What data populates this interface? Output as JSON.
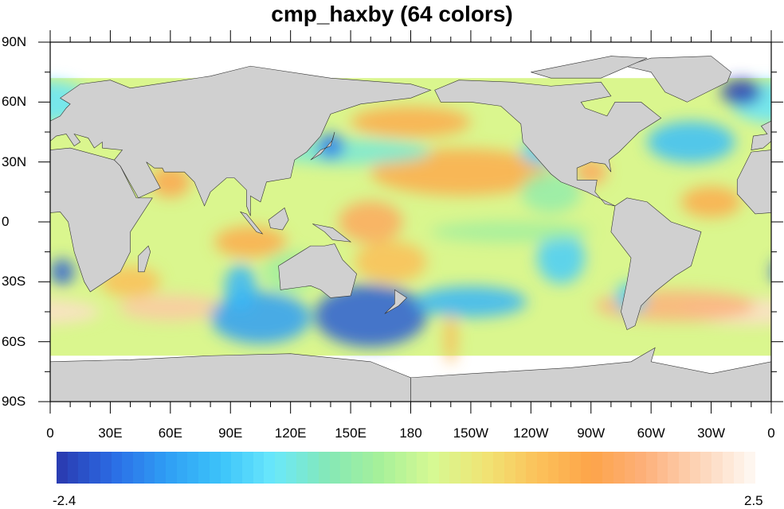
{
  "title": "cmp_haxby (64 colors)",
  "map": {
    "projection": "cylindrical equidistant",
    "lon_range": [
      0,
      360
    ],
    "lat_range": [
      -90,
      90
    ],
    "land_color": "#d0d0d0",
    "missing_color": "#ffffff",
    "x_ticks": [
      {
        "lon": 0,
        "label": "0"
      },
      {
        "lon": 30,
        "label": "30E"
      },
      {
        "lon": 60,
        "label": "60E"
      },
      {
        "lon": 90,
        "label": "90E"
      },
      {
        "lon": 120,
        "label": "120E"
      },
      {
        "lon": 150,
        "label": "150E"
      },
      {
        "lon": 180,
        "label": "180"
      },
      {
        "lon": 210,
        "label": "150W"
      },
      {
        "lon": 240,
        "label": "120W"
      },
      {
        "lon": 270,
        "label": "90W"
      },
      {
        "lon": 300,
        "label": "60W"
      },
      {
        "lon": 330,
        "label": "30W"
      },
      {
        "lon": 360,
        "label": "0"
      }
    ],
    "y_ticks": [
      {
        "lat": 90,
        "label": "90N"
      },
      {
        "lat": 60,
        "label": "60N"
      },
      {
        "lat": 30,
        "label": "30N"
      },
      {
        "lat": 0,
        "label": "0"
      },
      {
        "lat": -30,
        "label": "30S"
      },
      {
        "lat": -60,
        "label": "60S"
      },
      {
        "lat": -90,
        "label": "90S"
      }
    ]
  },
  "colorbar": {
    "colormap": "cmp_haxby",
    "n_colors": 64,
    "min_label": "-2.4",
    "max_label": "2.5",
    "stops": [
      "#2a3db3",
      "#2b6ee6",
      "#2f9ff5",
      "#3cc3fa",
      "#6ae8fb",
      "#84e8b8",
      "#a6f09a",
      "#d6f993",
      "#f0e474",
      "#fcc15a",
      "#fda449",
      "#fdb07a",
      "#fdd3b5",
      "#fef6ef"
    ]
  }
}
